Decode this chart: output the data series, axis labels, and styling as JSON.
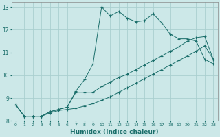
{
  "xlabel": "Humidex (Indice chaleur)",
  "bg_color": "#cce8e8",
  "grid_color": "#aacfcf",
  "line_color": "#1a6e6a",
  "xlim": [
    -0.5,
    23.5
  ],
  "ylim": [
    8.0,
    13.2
  ],
  "xticks": [
    0,
    1,
    2,
    3,
    4,
    5,
    6,
    7,
    8,
    9,
    10,
    11,
    12,
    13,
    14,
    15,
    16,
    17,
    18,
    19,
    20,
    21,
    22,
    23
  ],
  "yticks": [
    8,
    9,
    10,
    11,
    12,
    13
  ],
  "series1_y": [
    8.7,
    8.2,
    8.2,
    8.2,
    8.4,
    8.5,
    8.6,
    9.3,
    9.8,
    10.5,
    13.0,
    12.6,
    12.8,
    12.5,
    12.35,
    12.4,
    12.7,
    12.3,
    11.8,
    11.6,
    11.6,
    11.5,
    10.7,
    10.5
  ],
  "series2_y": [
    8.7,
    8.2,
    8.2,
    8.2,
    8.4,
    8.5,
    8.6,
    9.25,
    9.25,
    9.25,
    9.5,
    9.7,
    9.9,
    10.05,
    10.25,
    10.45,
    10.65,
    10.85,
    11.05,
    11.25,
    11.5,
    11.65,
    11.7,
    10.7
  ],
  "series3_y": [
    8.7,
    8.2,
    8.2,
    8.2,
    8.35,
    8.45,
    8.5,
    8.55,
    8.65,
    8.75,
    8.9,
    9.05,
    9.25,
    9.45,
    9.65,
    9.85,
    10.05,
    10.25,
    10.45,
    10.65,
    10.85,
    11.05,
    11.3,
    10.7
  ]
}
